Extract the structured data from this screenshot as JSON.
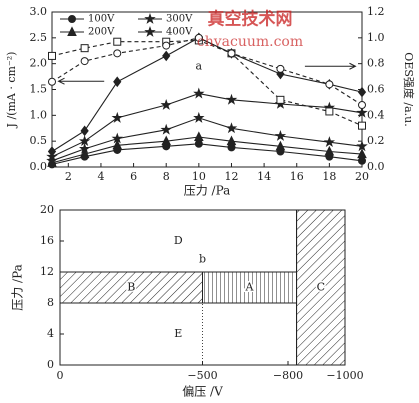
{
  "chart_data": [
    {
      "type": "line",
      "x": [
        1,
        3,
        5,
        8,
        10,
        12,
        15,
        18,
        20
      ],
      "xlabel": "压力 /Pa",
      "ylabel": "J /(mA · cm⁻²)",
      "y2label": "OES强度 /a.u.",
      "xlim": [
        1,
        20
      ],
      "xticks": [
        2,
        4,
        6,
        8,
        10,
        12,
        14,
        16,
        18,
        20
      ],
      "ylim": [
        0,
        3
      ],
      "yticks": [
        {
          "value": 0,
          "label": "0.0"
        },
        0.5,
        {
          "value": 1,
          "label": "1.0"
        },
        1.5,
        {
          "value": 2,
          "label": "2.0"
        },
        2.5,
        {
          "value": 3,
          "label": "3.0"
        }
      ],
      "y2lim": [
        0,
        1.2
      ],
      "y2ticks": [
        {
          "value": 0,
          "label": "0.0"
        },
        0.2,
        0.4,
        0.6,
        0.8,
        {
          "value": 1,
          "label": "1.0"
        },
        1.2
      ],
      "legend": "upper left",
      "annotations": [
        "a"
      ],
      "series": [
        {
          "name": "100V",
          "color": "#222",
          "marker": "circle",
          "values": [
            0.05,
            0.2,
            0.33,
            0.4,
            0.45,
            0.38,
            0.3,
            0.2,
            0.12
          ]
        },
        {
          "name": "200V",
          "color": "#222",
          "marker": "triangle",
          "values": [
            0.08,
            0.25,
            0.42,
            0.5,
            0.58,
            0.5,
            0.4,
            0.3,
            0.25
          ]
        },
        {
          "name": "300V",
          "color": "#222",
          "marker": "star",
          "values": [
            0.12,
            0.35,
            0.55,
            0.72,
            0.95,
            0.75,
            0.6,
            0.48,
            0.4
          ]
        },
        {
          "name": "400V",
          "color": "#222",
          "marker": "star",
          "values": [
            0.2,
            0.5,
            0.95,
            1.2,
            1.42,
            1.3,
            1.22,
            1.15,
            1.05
          ]
        },
        {
          "color": "#222",
          "marker": "diamond",
          "values": [
            0.3,
            0.7,
            1.65,
            2.15,
            2.5,
            2.2,
            1.8,
            1.6,
            1.45
          ]
        },
        {
          "color": "#222",
          "marker": "open-square",
          "dash": true,
          "axis": "y2",
          "values": [
            0.86,
            0.92,
            0.97,
            0.97,
            0.98,
            0.88,
            0.52,
            0.43,
            0.32
          ]
        },
        {
          "color": "#222",
          "marker": "open-circle",
          "dash": true,
          "axis": "y2",
          "values": [
            0.66,
            0.82,
            0.88,
            0.94,
            1.0,
            0.88,
            0.76,
            0.64,
            0.48
          ]
        }
      ]
    },
    {
      "type": "region",
      "xlabel": "偏压 /V",
      "ylabel": "压力 /Pa",
      "xlim": [
        0,
        -1000
      ],
      "xticks": [
        0,
        {
          "value": -500,
          "label": "−500"
        },
        {
          "value": -800,
          "label": "−800"
        },
        {
          "value": -1000,
          "label": "−1000"
        }
      ],
      "ylim": [
        0,
        20
      ],
      "yticks": [
        0,
        4,
        8,
        12,
        16,
        20
      ],
      "annotations": [
        "b"
      ],
      "regions": [
        {
          "label": "D",
          "x": [
            0,
            -830
          ],
          "y": [
            12,
            20
          ],
          "fill": "none"
        },
        {
          "label": "E",
          "x": [
            0,
            -830
          ],
          "y": [
            0,
            8
          ],
          "fill": "none"
        },
        {
          "label": "B",
          "x": [
            0,
            -500
          ],
          "y": [
            8,
            12
          ],
          "fill": "diagonal"
        },
        {
          "label": "A",
          "x": [
            -500,
            -830
          ],
          "y": [
            8,
            12
          ],
          "fill": "vertical"
        },
        {
          "label": "C",
          "x": [
            -830,
            -1000
          ],
          "y": [
            0,
            20
          ],
          "fill": "diagonal"
        }
      ],
      "boundaries": [
        {
          "x": -500,
          "y": [
            0,
            8
          ],
          "style": "dotted"
        }
      ]
    }
  ],
  "watermark": {
    "title": "真空技术网",
    "url": "chvacuum.com"
  }
}
